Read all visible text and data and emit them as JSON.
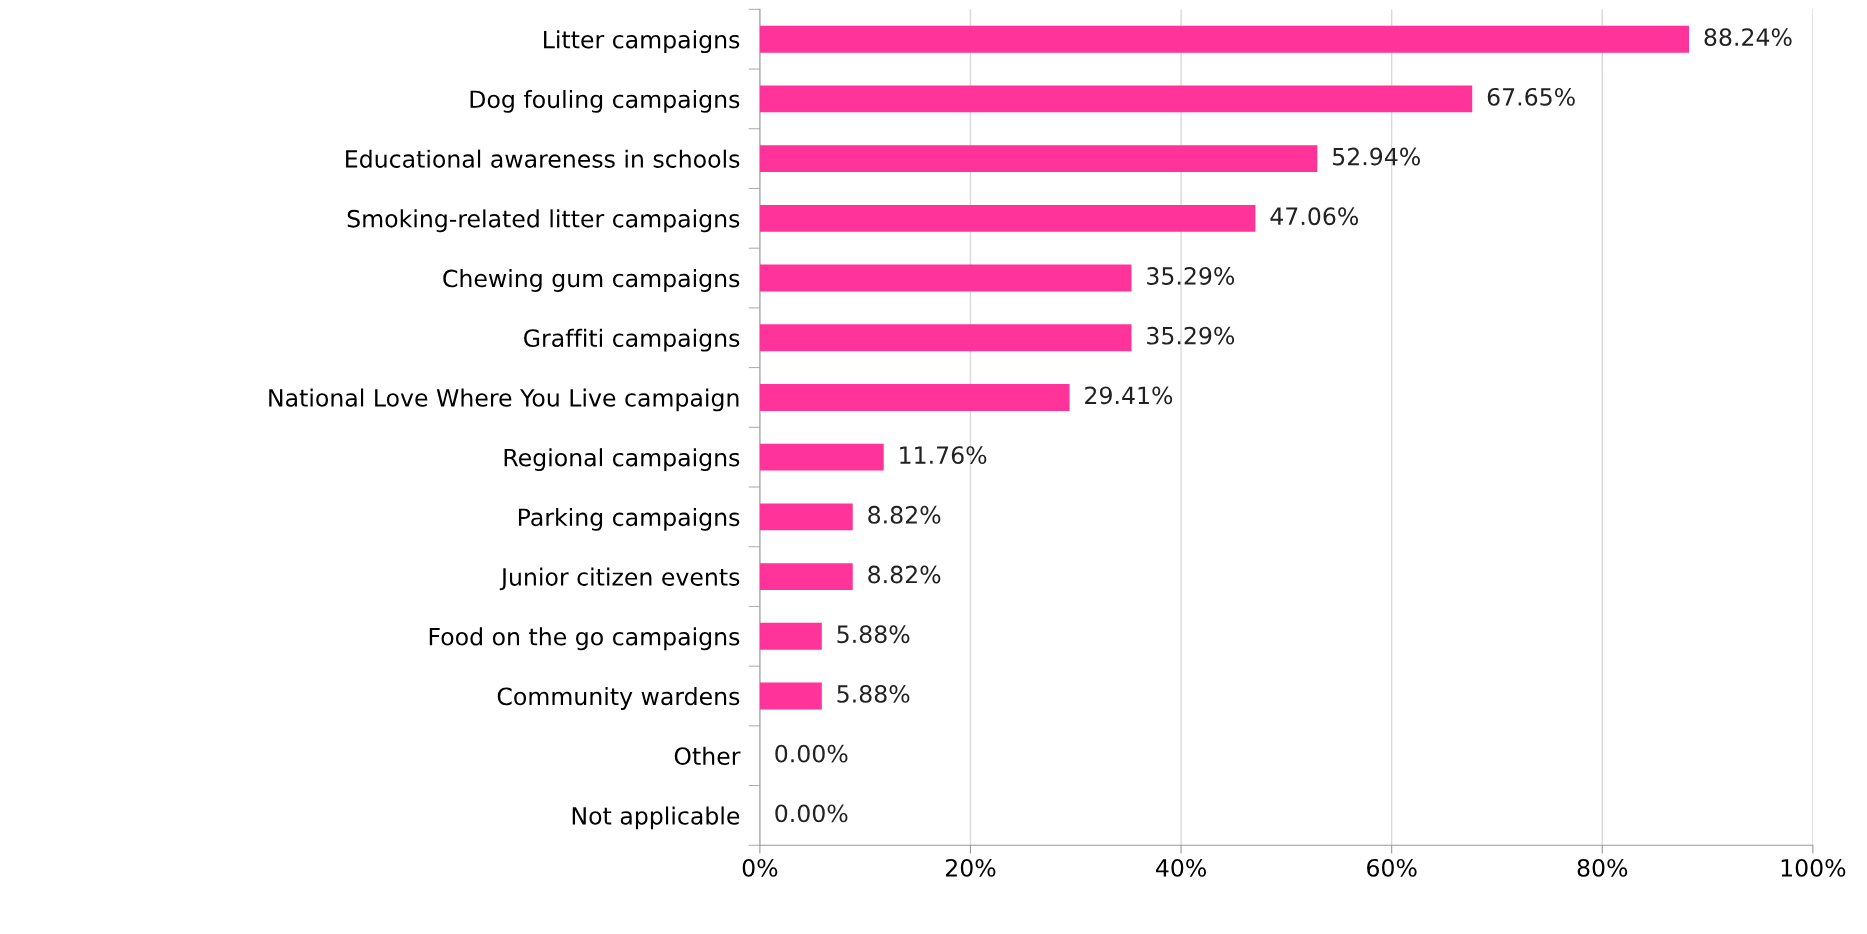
{
  "chart_data": {
    "type": "bar",
    "orientation": "horizontal",
    "categories": [
      "Litter campaigns",
      "Dog fouling campaigns",
      "Educational awareness in schools",
      "Smoking-related litter campaigns",
      "Chewing gum campaigns",
      "Graffiti campaigns",
      "National Love Where You Live campaign",
      "Regional campaigns",
      "Parking campaigns",
      "Junior citizen events",
      "Food on the go campaigns",
      "Community wardens",
      "Other",
      "Not applicable"
    ],
    "values": [
      88.24,
      67.65,
      52.94,
      47.06,
      35.29,
      35.29,
      29.41,
      11.76,
      8.82,
      8.82,
      5.88,
      5.88,
      0.0,
      0.0
    ],
    "value_labels": [
      "88.24%",
      "67.65%",
      "52.94%",
      "47.06%",
      "35.29%",
      "35.29%",
      "29.41%",
      "11.76%",
      "8.82%",
      "8.82%",
      "5.88%",
      "5.88%",
      "0.00%",
      "0.00%"
    ],
    "color": "#ff3399",
    "xlim": [
      0,
      100
    ],
    "xticks": [
      {
        "value": 0,
        "label": "0%"
      },
      {
        "value": 20,
        "label": "20%"
      },
      {
        "value": 40,
        "label": "40%"
      },
      {
        "value": 60,
        "label": "60%"
      },
      {
        "value": 80,
        "label": "80%"
      },
      {
        "value": 100,
        "label": "100%"
      }
    ],
    "grid": "x"
  }
}
